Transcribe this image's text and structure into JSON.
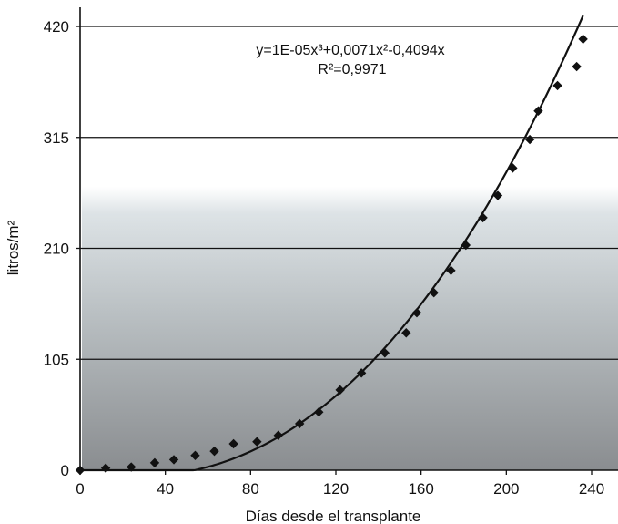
{
  "chart_data": {
    "type": "scatter",
    "xlabel": "Días desde el transplante",
    "ylabel": "litros/m²",
    "xlim": [
      0,
      240
    ],
    "ylim": [
      0,
      420
    ],
    "x_ticks": [
      "0",
      "40",
      "80",
      "120",
      "160",
      "200",
      "240"
    ],
    "y_ticks": [
      "0",
      "105",
      "210",
      "315",
      "420"
    ],
    "grid": "horizontal",
    "annotation": {
      "equation": "y=1E-05x³+0,0071x²-0,4094x",
      "r_squared": "R²=0,9971"
    },
    "series": [
      {
        "marker": "diamond",
        "color": "#111111",
        "points": [
          [
            0,
            0
          ],
          [
            12,
            2
          ],
          [
            24,
            3
          ],
          [
            35,
            7
          ],
          [
            44,
            10
          ],
          [
            54,
            14
          ],
          [
            63,
            18
          ],
          [
            72,
            25
          ],
          [
            83,
            27
          ],
          [
            93,
            33
          ],
          [
            103,
            44
          ],
          [
            112,
            55
          ],
          [
            122,
            76
          ],
          [
            132,
            92
          ],
          [
            143,
            111
          ],
          [
            153,
            130
          ],
          [
            158,
            149
          ],
          [
            166,
            168
          ],
          [
            174,
            189
          ],
          [
            181,
            213
          ],
          [
            189,
            239
          ],
          [
            196,
            260
          ],
          [
            203,
            286
          ],
          [
            211,
            313
          ],
          [
            215,
            340
          ],
          [
            224,
            364
          ],
          [
            233,
            382
          ],
          [
            236,
            408
          ]
        ]
      }
    ],
    "trendline": {
      "type": "polynomial",
      "coefficients": [
        1e-05,
        0.0071,
        -0.4094,
        0
      ],
      "color": "#111111"
    }
  }
}
